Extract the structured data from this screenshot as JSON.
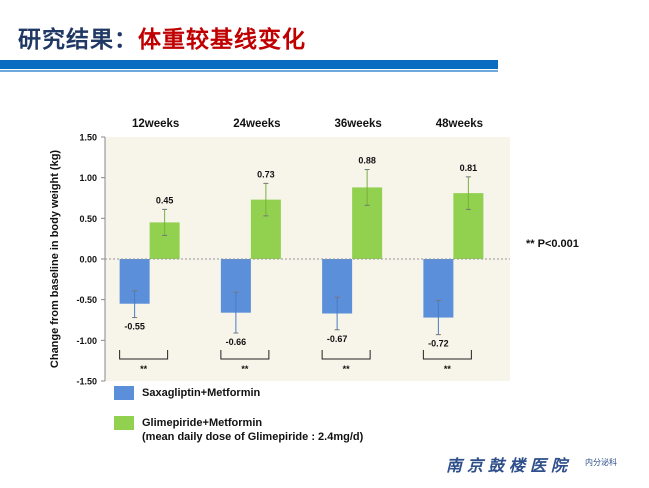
{
  "slide": {
    "title_prefix": "研究结果：",
    "title_highlight": "体重较基线变化",
    "significance_note": "** P<0.001",
    "hospital_name": "南京鼓楼医院",
    "department": "内分泌科"
  },
  "legend": {
    "series1": "Saxagliptin+Metformin",
    "series2_line1": "Glimepiride+Metformin",
    "series2_line2": "(mean daily dose of Glimepiride : 2.4mg/d)"
  },
  "colors": {
    "series1": "#5b8fd9",
    "series2": "#92d050",
    "plot_bg": "#f7f4ea",
    "title_dark": "#1f3864",
    "title_red": "#c00000",
    "accent_bar": "#0a6cc0"
  },
  "chart_data": {
    "type": "bar",
    "categories": [
      "12weeks",
      "24weeks",
      "36weeks",
      "48weeks"
    ],
    "series": [
      {
        "name": "Saxagliptin+Metformin",
        "values": [
          -0.55,
          -0.66,
          -0.67,
          -0.72
        ],
        "labels": [
          "-0.55",
          "-0.66",
          "-0.67",
          "-0.72"
        ],
        "err_low": [
          -0.72,
          -0.91,
          -0.87,
          -0.93
        ],
        "err_high": [
          -0.39,
          -0.41,
          -0.47,
          -0.51
        ]
      },
      {
        "name": "Glimepiride+Metformin",
        "values": [
          0.45,
          0.73,
          0.88,
          0.81
        ],
        "labels": [
          "0.45",
          "0.73",
          "0.88",
          "0.81"
        ],
        "err_low": [
          0.29,
          0.53,
          0.66,
          0.61
        ],
        "err_high": [
          0.61,
          0.93,
          1.1,
          1.01
        ]
      }
    ],
    "ylabel": "Change from baseline in body weight (kg)",
    "ylim": [
      -1.5,
      1.5
    ],
    "yticks": [
      "1.50",
      "1.00",
      "0.50",
      "0.00",
      "-0.50",
      "-1.00",
      "-1.50"
    ],
    "significance": [
      "**",
      "**",
      "**",
      "**"
    ],
    "grid": false,
    "category_label_position": "top"
  }
}
